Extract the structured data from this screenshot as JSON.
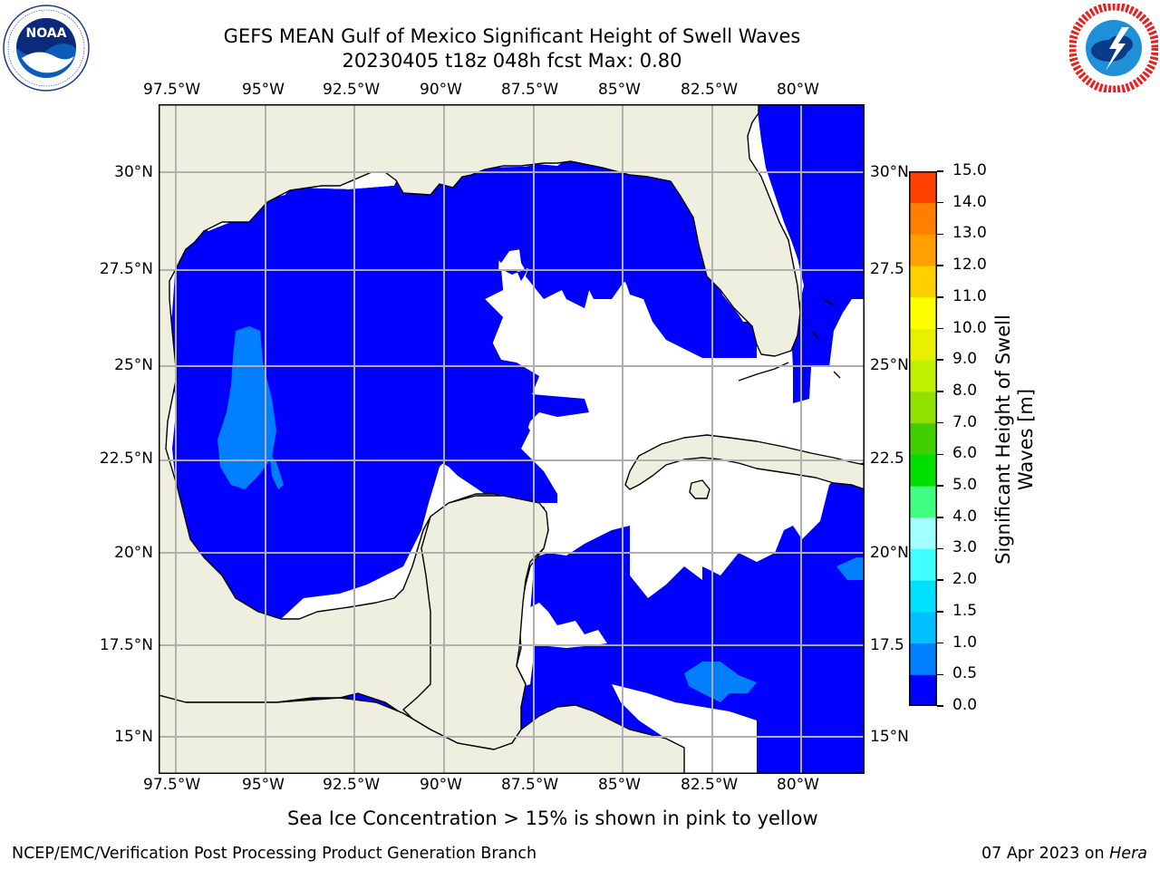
{
  "header": {
    "title_line1": "GEFS MEAN Gulf of Mexico Significant Height of Swell Waves",
    "title_line2": "20230405 t18z 048h fcst   Max: 0.80"
  },
  "logos": {
    "left": {
      "name": "noaa-logo",
      "text": "NOAA",
      "ring_text": "NATIONAL OCEANIC AND ATMOSPHERIC ADMINISTRATION · U.S. DEPARTMENT OF COMMERCE"
    },
    "right": {
      "name": "nws-logo",
      "ring_text": "NATIONAL WEATHER SERVICE"
    }
  },
  "map": {
    "lon_ticks": [
      "97.5°W",
      "95°W",
      "92.5°W",
      "90°W",
      "87.5°W",
      "85°W",
      "82.5°W",
      "80°W"
    ],
    "lat_ticks_left": [
      "30°N",
      "27.5°N",
      "25°N",
      "22.5°N",
      "20°N",
      "17.5°N",
      "15°N"
    ],
    "lat_ticks_right": [
      "30°N",
      "27.5",
      "25°N",
      "22.5",
      "20°N",
      "17.5",
      "15°N"
    ],
    "colors": {
      "land": "#efefdf",
      "ocean_low": "#0000ff",
      "ocean_mid": "#0080ff",
      "no_data": "#ffffff",
      "grid": "#b0b0b0"
    }
  },
  "colorbar": {
    "label_line1": "Significant Height of Swell",
    "label_line2": "Waves [m]",
    "ticks": [
      "0.0",
      "0.5",
      "1.0",
      "1.5",
      "2.0",
      "3.0",
      "4.0",
      "5.0",
      "6.0",
      "7.0",
      "8.0",
      "9.0",
      "10.0",
      "11.0",
      "12.0",
      "13.0",
      "14.0",
      "15.0"
    ],
    "colors": [
      "#0000ff",
      "#0080ff",
      "#00c0ff",
      "#00e0ff",
      "#40ffff",
      "#a0ffff",
      "#40ff80",
      "#00e000",
      "#40d000",
      "#90e000",
      "#c0f000",
      "#e8f000",
      "#ffff00",
      "#ffd000",
      "#ffa000",
      "#ff8000",
      "#ff4000",
      "#ff0000"
    ]
  },
  "note": "Sea Ice Concentration > 15% is shown in pink to yellow",
  "footer": {
    "left": "NCEP/EMC/Verification Post Processing Product Generation Branch",
    "date": "07 Apr 2023 on ",
    "machine": "Hera"
  }
}
